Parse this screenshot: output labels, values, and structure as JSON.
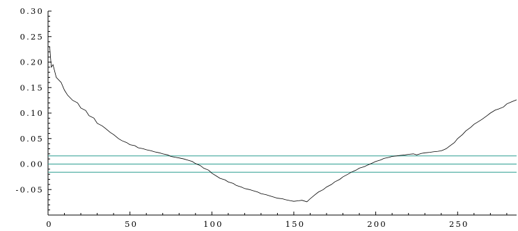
{
  "chart_data": {
    "type": "line",
    "title": "",
    "xlabel": "",
    "ylabel": "",
    "xlim": [
      0,
      286
    ],
    "ylim": [
      -0.1,
      0.3
    ],
    "x_ticks": [
      0,
      50,
      100,
      150,
      200,
      250
    ],
    "x_tick_labels": [
      "0",
      "50",
      "100",
      "150",
      "200",
      "250"
    ],
    "y_ticks": [
      0.3,
      0.25,
      0.2,
      0.15,
      0.1,
      0.05,
      0.0,
      -0.05
    ],
    "y_tick_labels": [
      "0.30",
      "0.25",
      "0.20",
      "0.15",
      "0.10",
      "0.05",
      "0.00",
      "-0.05"
    ],
    "grid": false,
    "colors": {
      "series": "#000000",
      "reference_lines": "#2a9d8f"
    },
    "reference_lines": [
      0.016,
      0.0,
      -0.016
    ],
    "series": [
      {
        "x": [
          1,
          2,
          3,
          5,
          8,
          10,
          12,
          15,
          18,
          20,
          23,
          25,
          28,
          30,
          33,
          35,
          38,
          40,
          43,
          45,
          48,
          50,
          53,
          55,
          58,
          60,
          63,
          65,
          68,
          70,
          73,
          75,
          78,
          80,
          83,
          85,
          88,
          90,
          93,
          95,
          98,
          100,
          103,
          105,
          108,
          110,
          113,
          115,
          118,
          120,
          123,
          125,
          128,
          130,
          133,
          135,
          138,
          140,
          143,
          145,
          148,
          150,
          153,
          155,
          158,
          160,
          163,
          165,
          168,
          170,
          173,
          175,
          178,
          180,
          183,
          185,
          188,
          190,
          193,
          195,
          198,
          200,
          203,
          205,
          208,
          210,
          213,
          215,
          218,
          220,
          223,
          225,
          228,
          230,
          233,
          235,
          238,
          240,
          243,
          245,
          248,
          250,
          253,
          255,
          258,
          260,
          263,
          265,
          268,
          270,
          273,
          275,
          278,
          280,
          283,
          286
        ],
        "values": [
          0.23,
          0.19,
          0.195,
          0.17,
          0.16,
          0.145,
          0.135,
          0.125,
          0.12,
          0.11,
          0.105,
          0.095,
          0.09,
          0.08,
          0.075,
          0.07,
          0.062,
          0.058,
          0.05,
          0.046,
          0.042,
          0.038,
          0.036,
          0.032,
          0.03,
          0.028,
          0.026,
          0.024,
          0.022,
          0.02,
          0.018,
          0.015,
          0.013,
          0.012,
          0.01,
          0.008,
          0.005,
          0.001,
          -0.003,
          -0.008,
          -0.012,
          -0.018,
          -0.024,
          -0.028,
          -0.031,
          -0.035,
          -0.038,
          -0.042,
          -0.045,
          -0.048,
          -0.05,
          -0.052,
          -0.055,
          -0.058,
          -0.06,
          -0.062,
          -0.065,
          -0.067,
          -0.068,
          -0.07,
          -0.072,
          -0.073,
          -0.072,
          -0.071,
          -0.074,
          -0.068,
          -0.06,
          -0.055,
          -0.05,
          -0.045,
          -0.04,
          -0.035,
          -0.03,
          -0.025,
          -0.02,
          -0.016,
          -0.012,
          -0.008,
          -0.005,
          -0.002,
          0.002,
          0.005,
          0.008,
          0.011,
          0.013,
          0.015,
          0.016,
          0.017,
          0.018,
          0.019,
          0.02,
          0.018,
          0.021,
          0.022,
          0.023,
          0.024,
          0.025,
          0.026,
          0.03,
          0.035,
          0.042,
          0.05,
          0.058,
          0.065,
          0.072,
          0.078,
          0.084,
          0.088,
          0.095,
          0.1,
          0.106,
          0.108,
          0.112,
          0.118,
          0.122,
          0.126
        ]
      }
    ]
  }
}
